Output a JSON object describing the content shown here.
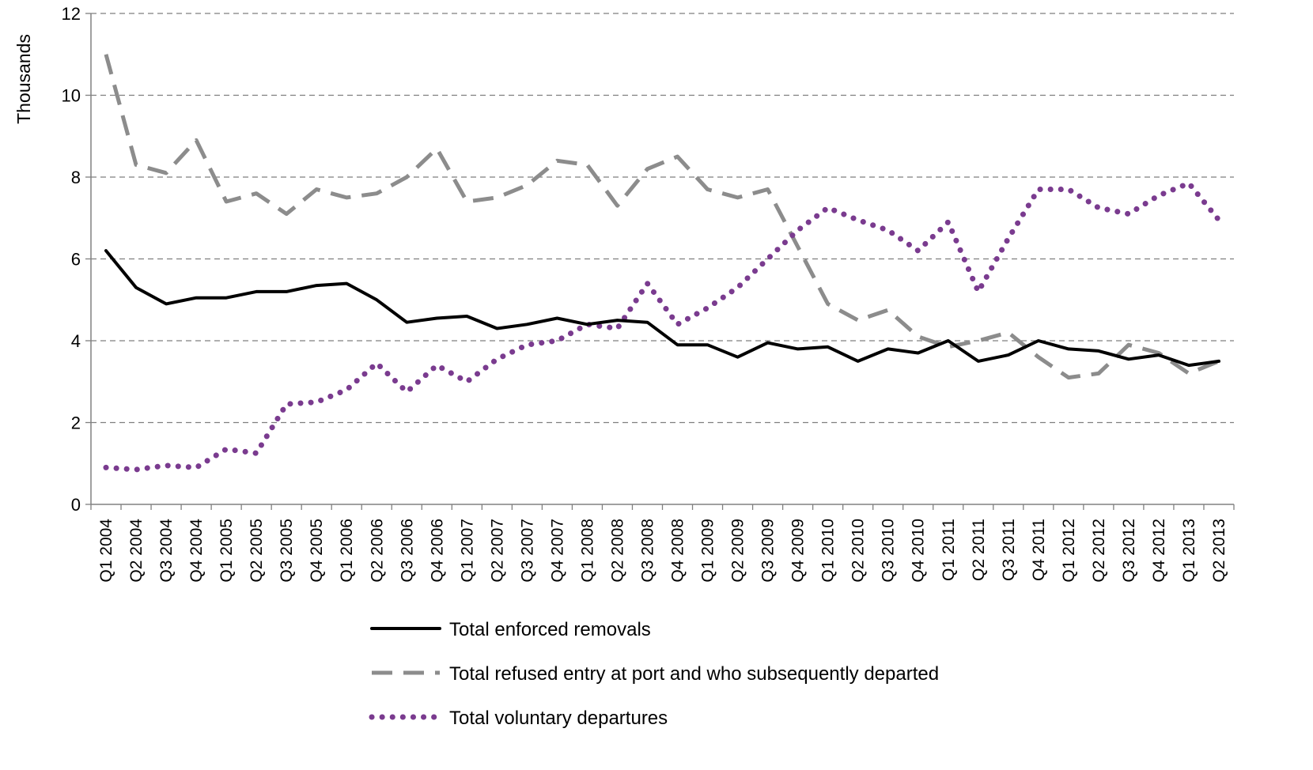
{
  "chart_data": {
    "type": "line",
    "ylabel": "Thousands",
    "xlabel": "",
    "ylim": [
      0,
      12
    ],
    "yticks": [
      0,
      2,
      4,
      6,
      8,
      10,
      12
    ],
    "grid": "horizontal dashed",
    "legend_position": "bottom",
    "categories": [
      "Q1 2004",
      "Q2 2004",
      "Q3 2004",
      "Q4 2004",
      "Q1 2005",
      "Q2 2005",
      "Q3 2005",
      "Q4 2005",
      "Q1 2006",
      "Q2 2006",
      "Q3 2006",
      "Q4 2006",
      "Q1 2007",
      "Q2 2007",
      "Q3 2007",
      "Q4 2007",
      "Q1 2008",
      "Q2 2008",
      "Q3 2008",
      "Q4 2008",
      "Q1 2009",
      "Q2 2009",
      "Q3 2009",
      "Q4 2009",
      "Q1 2010",
      "Q2 2010",
      "Q3 2010",
      "Q4 2010",
      "Q1 2011",
      "Q2 2011",
      "Q3 2011",
      "Q4 2011",
      "Q1 2012",
      "Q2 2012",
      "Q3 2012",
      "Q4 2012",
      "Q1 2013",
      "Q2 2013"
    ],
    "series": [
      {
        "name": "Total enforced removals",
        "color": "#000000",
        "style": "solid",
        "values": [
          6.2,
          5.3,
          4.9,
          5.05,
          5.05,
          5.2,
          5.2,
          5.35,
          5.4,
          5.0,
          4.45,
          4.55,
          4.6,
          4.3,
          4.4,
          4.55,
          4.4,
          4.5,
          4.45,
          3.9,
          3.9,
          3.6,
          3.95,
          3.8,
          3.85,
          3.5,
          3.8,
          3.7,
          4.0,
          3.5,
          3.65,
          4.0,
          3.8,
          3.75,
          3.55,
          3.65,
          3.4,
          3.5
        ]
      },
      {
        "name": "Total refused entry at port and who subsequently departed",
        "color": "#8c8c8c",
        "style": "dashed",
        "values": [
          11.0,
          8.3,
          8.1,
          8.9,
          7.4,
          7.6,
          7.1,
          7.7,
          7.5,
          7.6,
          8.0,
          8.7,
          7.4,
          7.5,
          7.8,
          8.4,
          8.3,
          7.3,
          8.2,
          8.5,
          7.7,
          7.5,
          7.7,
          6.3,
          4.9,
          4.5,
          4.75,
          4.1,
          3.85,
          4.0,
          4.2,
          3.6,
          3.1,
          3.2,
          3.9,
          3.7,
          3.2,
          3.5
        ]
      },
      {
        "name": "Total voluntary departures",
        "color": "#7a3b8f",
        "style": "dotted",
        "values": [
          0.9,
          0.85,
          0.95,
          0.9,
          1.35,
          1.25,
          2.45,
          2.5,
          2.8,
          3.45,
          2.75,
          3.4,
          3.0,
          3.55,
          3.9,
          4.0,
          4.4,
          4.3,
          5.4,
          4.4,
          4.8,
          5.3,
          6.0,
          6.7,
          7.25,
          6.95,
          6.7,
          6.2,
          6.9,
          5.2,
          6.5,
          7.7,
          7.7,
          7.25,
          7.1,
          7.55,
          7.85,
          6.95
        ]
      }
    ]
  }
}
